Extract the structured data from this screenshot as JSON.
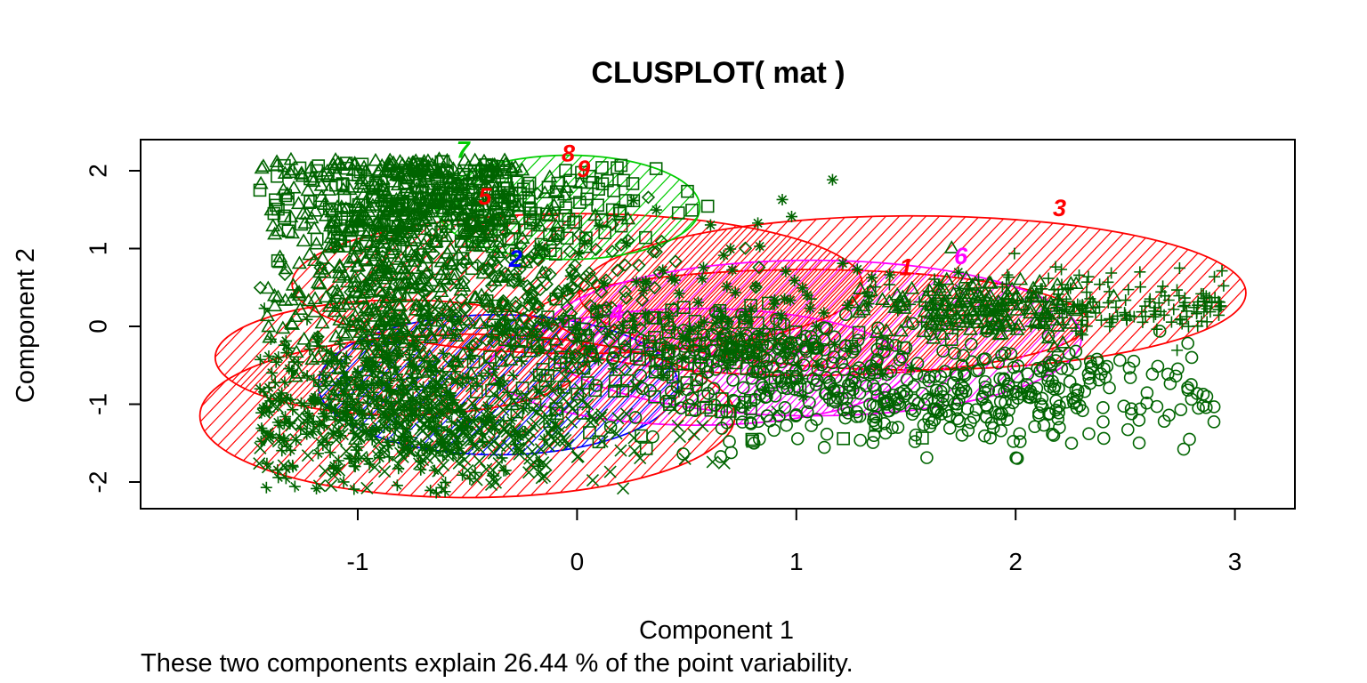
{
  "chart_data": {
    "type": "scatter",
    "title": "CLUSPLOT( mat )",
    "xlabel": "Component 1",
    "ylabel": "Component 2",
    "subtitle": "These two components explain 26.44 % of the point variability.",
    "xlim": [
      -1.0,
      3.0
    ],
    "ylim": [
      -2.0,
      2.0
    ],
    "x_ticks": [
      -1,
      0,
      1,
      2,
      3
    ],
    "y_ticks": [
      -2,
      -1,
      0,
      1,
      2
    ],
    "grid": false,
    "legend": "none",
    "point_color": "#006400",
    "clusters": [
      {
        "label": "1",
        "color": "#FF0000",
        "label_pos": [
          1.5,
          0.74
        ],
        "center": [
          1.05,
          0.05
        ],
        "rx": 1.28,
        "ry": 0.68,
        "angle": 0
      },
      {
        "label": "2",
        "color": "#0000FF",
        "label_pos": [
          -0.28,
          0.85
        ],
        "center": [
          -0.36,
          -0.75
        ],
        "rx": 0.82,
        "ry": 0.9,
        "angle": 0
      },
      {
        "label": "3",
        "color": "#FF0000",
        "label_pos": [
          2.2,
          1.5
        ],
        "center": [
          1.53,
          0.43
        ],
        "rx": 1.52,
        "ry": 0.99,
        "angle": 0
      },
      {
        "label": "4",
        "color": "#FF00FF",
        "label_pos": [
          0.18,
          0.15
        ],
        "center": [
          0.55,
          -0.52
        ],
        "rx": 0.95,
        "ry": 0.75,
        "angle": 0
      },
      {
        "label": "5",
        "color": "#FF0000",
        "label_pos": [
          -0.42,
          1.65
        ],
        "center": [
          0.0,
          0.55
        ],
        "rx": 1.3,
        "ry": 0.9,
        "angle": 0
      },
      {
        "label": "6",
        "color": "#FF00FF",
        "label_pos": [
          1.75,
          0.88
        ],
        "center": [
          1.07,
          -0.15
        ],
        "rx": 1.23,
        "ry": 1.0,
        "angle": 0
      },
      {
        "label": "7",
        "color": "#00CC00",
        "label_pos": [
          -0.52,
          2.25
        ],
        "center": [
          -0.04,
          1.53
        ],
        "rx": 0.6,
        "ry": 0.67,
        "angle": 0
      },
      {
        "label": "8",
        "color": "#FF0000",
        "label_pos": [
          -0.04,
          2.2
        ],
        "center": [
          -0.8,
          -0.4
        ],
        "rx": 0.85,
        "ry": 0.74,
        "angle": 0
      },
      {
        "label": "9",
        "color": "#FF0000",
        "label_pos": [
          0.03,
          2.0
        ],
        "center": [
          -0.5,
          -1.15
        ],
        "rx": 1.22,
        "ry": 1.05,
        "angle": 0
      }
    ],
    "point_groups": [
      {
        "shape": "triangle",
        "center": [
          -0.75,
          1.55
        ],
        "sx": 0.3,
        "sy": 0.45,
        "n": 420
      },
      {
        "shape": "square",
        "center": [
          -0.55,
          1.6
        ],
        "sx": 0.45,
        "sy": 0.3,
        "n": 260
      },
      {
        "shape": "cross",
        "center": [
          -0.9,
          -1.0
        ],
        "sx": 0.35,
        "sy": 0.5,
        "n": 420
      },
      {
        "shape": "x",
        "center": [
          -0.55,
          -1.35
        ],
        "sx": 0.45,
        "sy": 0.35,
        "n": 300
      },
      {
        "shape": "triangle",
        "center": [
          -0.85,
          0.2
        ],
        "sx": 0.3,
        "sy": 0.55,
        "n": 300
      },
      {
        "shape": "diamond",
        "center": [
          -0.3,
          0.4
        ],
        "sx": 0.45,
        "sy": 0.5,
        "n": 220
      },
      {
        "shape": "circle",
        "center": [
          1.95,
          -0.85
        ],
        "sx": 0.45,
        "sy": 0.3,
        "n": 260
      },
      {
        "shape": "circle",
        "center": [
          1.1,
          -0.9
        ],
        "sx": 0.5,
        "sy": 0.3,
        "n": 160
      },
      {
        "shape": "plus",
        "center": [
          2.45,
          0.3
        ],
        "sx": 0.45,
        "sy": 0.2,
        "n": 180
      },
      {
        "shape": "triangle",
        "center": [
          1.85,
          0.25
        ],
        "sx": 0.25,
        "sy": 0.2,
        "n": 160
      },
      {
        "shape": "asterisk",
        "center": [
          0.6,
          0.35
        ],
        "sx": 0.5,
        "sy": 0.55,
        "n": 110
      },
      {
        "shape": "circle",
        "center": [
          0.85,
          -0.25
        ],
        "sx": 0.3,
        "sy": 0.15,
        "n": 140
      },
      {
        "shape": "square",
        "center": [
          0.35,
          -0.5
        ],
        "sx": 0.45,
        "sy": 0.45,
        "n": 140
      }
    ]
  }
}
